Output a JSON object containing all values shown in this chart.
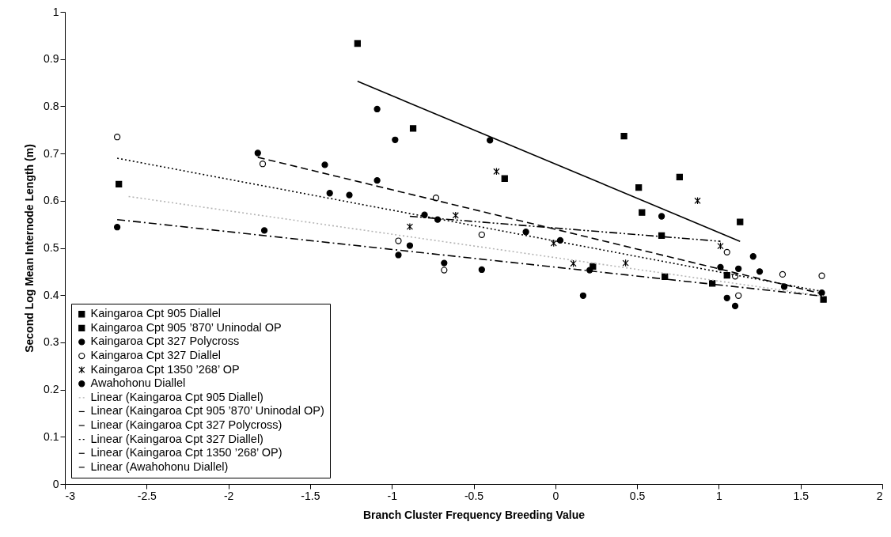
{
  "chart_data": {
    "type": "scatter",
    "xlabel": "Branch Cluster Frequency Breeding Value",
    "ylabel": "Second Log Mean Internode Length (m)",
    "xlim": [
      -3,
      2
    ],
    "ylim": [
      0,
      1
    ],
    "xticks": [
      -3,
      -2.5,
      -2,
      -1.5,
      -1,
      -0.5,
      0,
      0.5,
      1,
      1.5,
      2
    ],
    "yticks": [
      0,
      0.1,
      0.2,
      0.3,
      0.4,
      0.5,
      0.6,
      0.7,
      0.8,
      0.9,
      1
    ],
    "legend": "bottom left",
    "grid": false,
    "series": [
      {
        "name": "Kaingaroa Cpt 905 Diallel",
        "type": "scatter",
        "marker": "square",
        "color": "#000000",
        "x": [
          -2.67,
          0.23,
          0.96,
          1.05,
          1.64
        ],
        "values": [
          0.635,
          0.461,
          0.425,
          0.442,
          0.391
        ]
      },
      {
        "name": "Kaingaroa Cpt 905 ’870’ Uninodal OP",
        "type": "scatter",
        "marker": "square",
        "color": "#000000",
        "x": [
          -1.21,
          -0.87,
          -0.31,
          0.42,
          0.51,
          0.53,
          0.65,
          0.67,
          0.76,
          1.13
        ],
        "values": [
          0.933,
          0.753,
          0.647,
          0.737,
          0.628,
          0.575,
          0.526,
          0.439,
          0.65,
          0.555
        ]
      },
      {
        "name": "Kaingaroa Cpt 327 Polycross",
        "type": "scatter",
        "marker": "circle",
        "color": "#000000",
        "x": [
          -1.82,
          -1.41,
          -1.38,
          -1.26,
          -1.09,
          -1.09,
          -0.98,
          -0.8,
          -0.72,
          -0.4,
          -0.18,
          0.03,
          0.21,
          0.65,
          1.01,
          1.12,
          1.21,
          1.25
        ],
        "values": [
          0.701,
          0.676,
          0.616,
          0.612,
          0.794,
          0.643,
          0.729,
          0.57,
          0.56,
          0.728,
          0.534,
          0.516,
          0.453,
          0.567,
          0.459,
          0.456,
          0.482,
          0.45
        ]
      },
      {
        "name": "Kaingaroa Cpt 327 Diallel",
        "type": "scatter",
        "marker": "circle-open",
        "color": "#000000",
        "x": [
          -2.68,
          -1.79,
          -0.96,
          -0.73,
          -0.68,
          -0.45,
          1.05,
          1.1,
          1.12,
          1.39,
          1.63
        ],
        "values": [
          0.735,
          0.678,
          0.515,
          0.606,
          0.453,
          0.528,
          0.491,
          0.44,
          0.399,
          0.444,
          0.441
        ]
      },
      {
        "name": "Kaingaroa Cpt 1350 ’268’ OP",
        "type": "scatter",
        "marker": "cross",
        "color": "#000000",
        "x": [
          -0.89,
          -0.61,
          -0.36,
          -0.01,
          0.11,
          0.43,
          0.87,
          1.01
        ],
        "values": [
          0.545,
          0.569,
          0.662,
          0.51,
          0.467,
          0.468,
          0.6,
          0.504
        ]
      },
      {
        "name": "Awahohonu Diallel",
        "type": "scatter",
        "marker": "circle",
        "color": "#000000",
        "x": [
          -2.68,
          -1.78,
          -0.96,
          -0.89,
          -0.68,
          -0.45,
          0.17,
          1.05,
          1.1,
          1.4,
          1.63
        ],
        "values": [
          0.544,
          0.537,
          0.485,
          0.505,
          0.468,
          0.454,
          0.399,
          0.394,
          0.377,
          0.418,
          0.405
        ]
      },
      {
        "name": "Linear (Kaingaroa Cpt 905 Diallel)",
        "type": "line",
        "line_style": "dotted",
        "color": "#b4b4b4",
        "x": [
          -2.61,
          1.64
        ],
        "values": [
          0.609,
          0.398
        ]
      },
      {
        "name": "Linear (Kaingaroa Cpt 905 ’870’ Uninodal OP)",
        "type": "line",
        "line_style": "solid",
        "color": "#000000",
        "x": [
          -1.21,
          1.13
        ],
        "values": [
          0.853,
          0.514
        ]
      },
      {
        "name": "Linear (Kaingaroa Cpt 327 Polycross)",
        "type": "line",
        "line_style": "dashed",
        "color": "#000000",
        "x": [
          -1.82,
          1.63
        ],
        "values": [
          0.692,
          0.403
        ]
      },
      {
        "name": "Linear (Kaingaroa Cpt 327 Diallel)",
        "type": "line",
        "line_style": "dotted",
        "color": "#000000",
        "x": [
          -2.68,
          1.63
        ],
        "values": [
          0.69,
          0.408
        ]
      },
      {
        "name": "Linear (Kaingaroa Cpt 1350 ’268’ OP)",
        "type": "line",
        "line_style": "dashdotdot",
        "color": "#000000",
        "x": [
          -0.89,
          1.01
        ],
        "values": [
          0.567,
          0.514
        ]
      },
      {
        "name": "Linear (Awahohonu Diallel)",
        "type": "line",
        "line_style": "dashdot",
        "color": "#000000",
        "x": [
          -2.68,
          1.63
        ],
        "values": [
          0.56,
          0.398
        ]
      }
    ]
  }
}
